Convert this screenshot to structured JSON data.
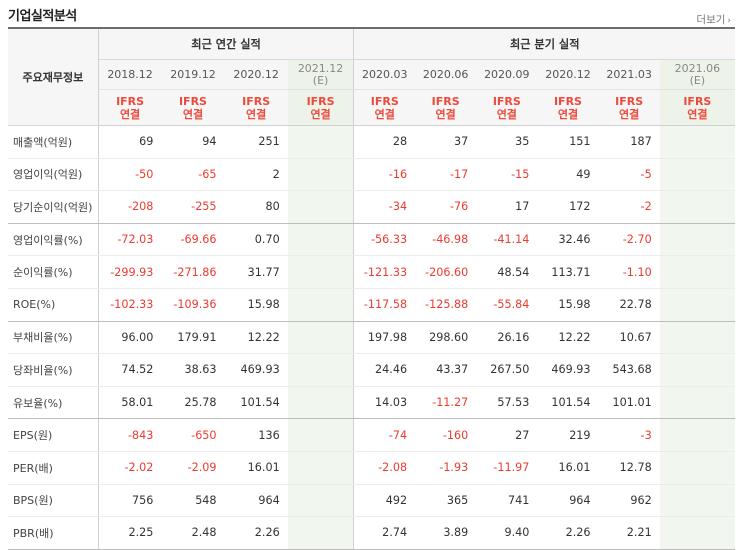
{
  "header": {
    "title": "기업실적분석",
    "more_label": "더보기"
  },
  "table": {
    "row_header_label": "주요재무정보",
    "annual_group_label": "최근 연간 실적",
    "quarter_group_label": "최근 분기 실적",
    "periods": [
      {
        "label": "2018.12",
        "est": ""
      },
      {
        "label": "2019.12",
        "est": ""
      },
      {
        "label": "2020.12",
        "est": ""
      },
      {
        "label": "2021.12",
        "est": "(E)"
      },
      {
        "label": "2020.03",
        "est": ""
      },
      {
        "label": "2020.06",
        "est": ""
      },
      {
        "label": "2020.09",
        "est": ""
      },
      {
        "label": "2020.12",
        "est": ""
      },
      {
        "label": "2021.03",
        "est": ""
      },
      {
        "label": "2021.06",
        "est": "(E)"
      }
    ],
    "basis_top": "IFRS",
    "basis_bottom": "연결",
    "rows": [
      {
        "label": "매출액(억원)",
        "values": [
          "69",
          "94",
          "251",
          "",
          "28",
          "37",
          "35",
          "151",
          "187",
          ""
        ]
      },
      {
        "label": "영업이익(억원)",
        "values": [
          "-50",
          "-65",
          "2",
          "",
          "-16",
          "-17",
          "-15",
          "49",
          "-5",
          ""
        ]
      },
      {
        "label": "당기순이익(억원)",
        "values": [
          "-208",
          "-255",
          "80",
          "",
          "-34",
          "-76",
          "17",
          "172",
          "-2",
          ""
        ]
      },
      {
        "label": "영업이익률(%)",
        "values": [
          "-72.03",
          "-69.66",
          "0.70",
          "",
          "-56.33",
          "-46.98",
          "-41.14",
          "32.46",
          "-2.70",
          ""
        ]
      },
      {
        "label": "순이익률(%)",
        "values": [
          "-299.93",
          "-271.86",
          "31.77",
          "",
          "-121.33",
          "-206.60",
          "48.54",
          "113.71",
          "-1.10",
          ""
        ]
      },
      {
        "label": "ROE(%)",
        "values": [
          "-102.33",
          "-109.36",
          "15.98",
          "",
          "-117.58",
          "-125.88",
          "-55.84",
          "15.98",
          "22.78",
          ""
        ]
      },
      {
        "label": "부채비율(%)",
        "values": [
          "96.00",
          "179.91",
          "12.22",
          "",
          "197.98",
          "298.60",
          "26.16",
          "12.22",
          "10.67",
          ""
        ]
      },
      {
        "label": "당좌비율(%)",
        "values": [
          "74.52",
          "38.63",
          "469.93",
          "",
          "24.46",
          "43.37",
          "267.50",
          "469.93",
          "543.68",
          ""
        ]
      },
      {
        "label": "유보율(%)",
        "values": [
          "58.01",
          "25.78",
          "101.54",
          "",
          "14.03",
          "-11.27",
          "57.53",
          "101.54",
          "101.01",
          ""
        ]
      },
      {
        "label": "EPS(원)",
        "values": [
          "-843",
          "-650",
          "136",
          "",
          "-74",
          "-160",
          "27",
          "219",
          "-3",
          ""
        ]
      },
      {
        "label": "PER(배)",
        "values": [
          "-2.02",
          "-2.09",
          "16.01",
          "",
          "-2.08",
          "-1.93",
          "-11.97",
          "16.01",
          "12.78",
          ""
        ]
      },
      {
        "label": "BPS(원)",
        "values": [
          "756",
          "548",
          "964",
          "",
          "492",
          "365",
          "741",
          "964",
          "962",
          ""
        ]
      },
      {
        "label": "PBR(배)",
        "values": [
          "2.25",
          "2.48",
          "2.26",
          "",
          "2.74",
          "3.89",
          "9.40",
          "2.26",
          "2.21",
          ""
        ]
      }
    ]
  },
  "colors": {
    "negative": "#ec3b2f",
    "basis": "#ec4b3c",
    "estimate_bg": "#f1f6ee"
  }
}
